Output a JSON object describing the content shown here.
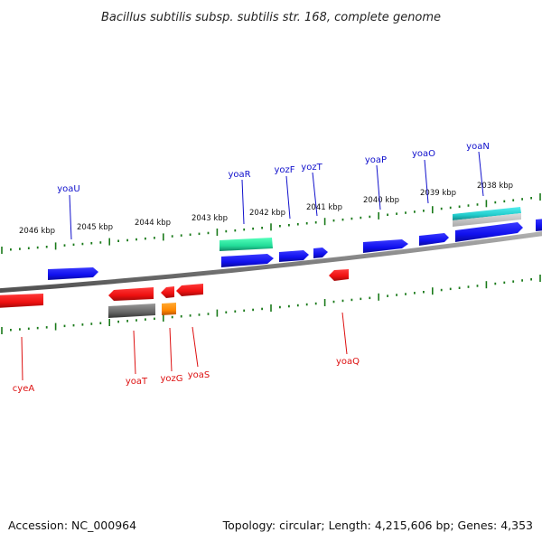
{
  "title": "Bacillus subtilis subsp. subtilis str. 168, complete genome",
  "footer": {
    "accession": "Accession: NC_000964",
    "topology": "Topology: circular; Length: 4,215,606 bp; Genes: 4,353"
  },
  "scale_labels": [
    "2046 kbp",
    "2045 kbp",
    "2044 kbp",
    "2043 kbp",
    "2042 kbp",
    "2041 kbp",
    "2040 kbp",
    "2039 kbp",
    "2038 kbp"
  ],
  "genes_forward": [
    {
      "name": "yoaU",
      "color": "#1010ee"
    },
    {
      "name": "yoaR",
      "color": "#1010ee"
    },
    {
      "name": "yozF",
      "color": "#1010ee"
    },
    {
      "name": "yozT",
      "color": "#1010ee"
    },
    {
      "name": "yoaP",
      "color": "#1010ee"
    },
    {
      "name": "yoaO",
      "color": "#1010ee"
    },
    {
      "name": "yoaN",
      "color": "#1010ee"
    }
  ],
  "genes_reverse": [
    {
      "name": "cyeA",
      "color": "#ee1010"
    },
    {
      "name": "yoaT",
      "color": "#ee1010"
    },
    {
      "name": "yozG",
      "color": "#ee1010"
    },
    {
      "name": "yoaS",
      "color": "#ee1010"
    },
    {
      "name": "yoaQ",
      "color": "#ee1010"
    }
  ],
  "colors": {
    "forward_label": "#1010cc",
    "reverse_label": "#dd1010",
    "tick": "#1a7a1a",
    "backbone": "#808080",
    "rna_green": "#22dd99",
    "rna_cyan": "#22cccc",
    "pseudo_gray": "#666666",
    "orange": "#ff8800"
  }
}
